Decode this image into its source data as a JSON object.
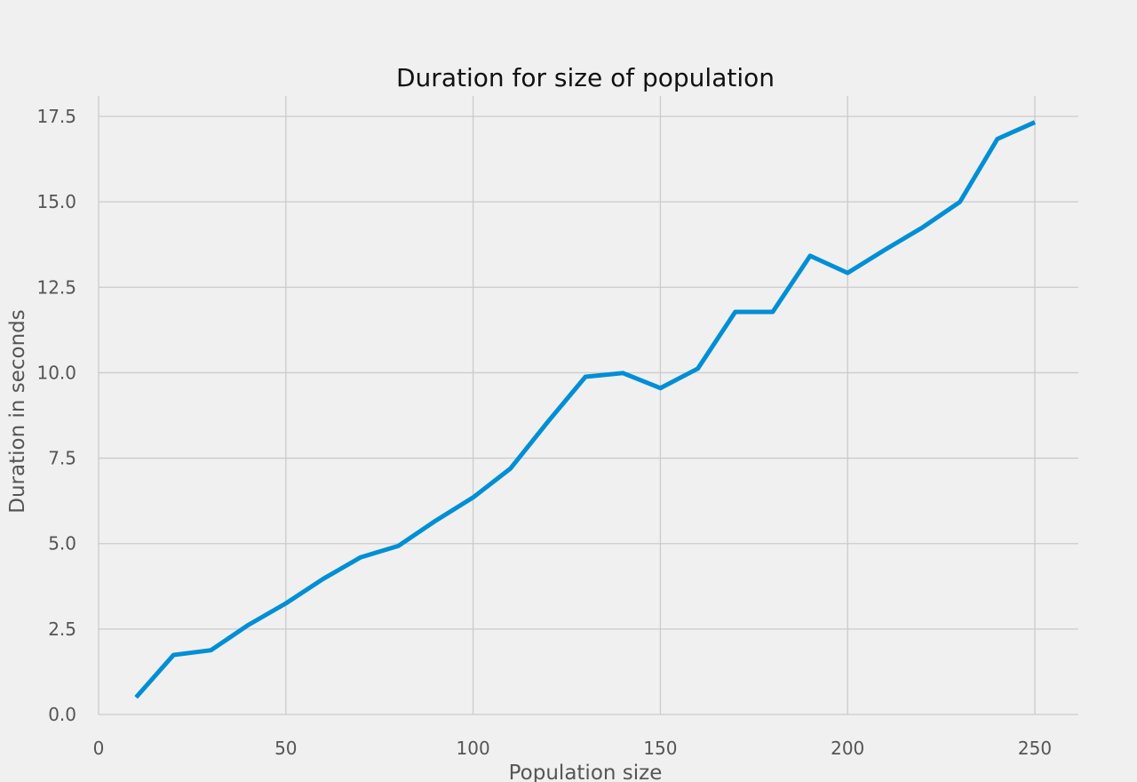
{
  "chart_data": {
    "type": "line",
    "title": "Duration for size of population",
    "xlabel": "Population size",
    "ylabel": "Duration in seconds",
    "xlim": [
      0,
      260
    ],
    "ylim": [
      0,
      17.9
    ],
    "xticks": [
      0,
      50,
      100,
      150,
      200,
      250
    ],
    "xtick_labels": [
      "0",
      "50",
      "100",
      "150",
      "200",
      "250"
    ],
    "yticks": [
      0,
      2.5,
      5,
      7.5,
      10,
      12.5,
      15,
      17.5
    ],
    "ytick_labels": [
      "0.0",
      "2.5",
      "5.0",
      "7.5",
      "10.0",
      "12.5",
      "15.0",
      "17.5"
    ],
    "grid": true,
    "series": [
      {
        "color": "#008fd5",
        "x": [
          10,
          20,
          30,
          40,
          50,
          60,
          70,
          80,
          90,
          100,
          110,
          120,
          130,
          140,
          150,
          160,
          170,
          180,
          190,
          200,
          210,
          220,
          230,
          240,
          250
        ],
        "y": [
          0.5,
          1.74,
          1.88,
          2.62,
          3.25,
          3.97,
          4.6,
          4.93,
          5.67,
          6.35,
          7.2,
          8.57,
          9.88,
          9.99,
          9.55,
          10.12,
          11.78,
          11.78,
          13.42,
          12.92,
          13.6,
          14.25,
          15.0,
          16.84,
          17.33
        ]
      }
    ]
  }
}
